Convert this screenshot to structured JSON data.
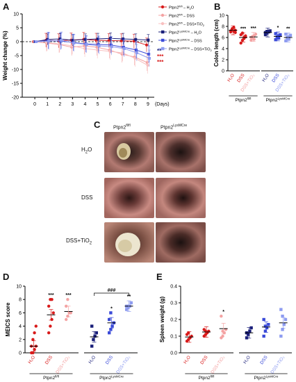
{
  "panels": {
    "a": "A",
    "b": "B",
    "c": "C",
    "d": "D",
    "e": "E"
  },
  "colors": {
    "red": "#d81b1b",
    "salmon": "#f4a3a3",
    "pink": "#f8c0c0",
    "navy": "#1a1f7a",
    "blue": "#3b4bd8",
    "lightblue": "#8e9cf0"
  },
  "panel_c": {
    "col_labels": [
      "Ptpn2",
      "fl/fl",
      "Ptpn2",
      "LysMCre"
    ],
    "row_labels": [
      "H",
      "2",
      "O",
      "DSS",
      "DSS+TiO",
      "2"
    ]
  },
  "chart_data": [
    {
      "type": "line",
      "panel": "A",
      "ylabel": "Weight change (%)",
      "xlabel": "(Days)",
      "x": [
        0,
        1,
        2,
        3,
        4,
        5,
        6,
        7,
        8,
        9
      ],
      "ylim": [
        -20,
        10
      ],
      "yticks": [
        10,
        5,
        0,
        -5,
        -10,
        -15,
        -20
      ],
      "legend": [
        {
          "base": "Ptpn2",
          "sup": "fl/fl",
          "suffix": " – H",
          "sub": "2",
          "tail": "O"
        },
        {
          "base": "Ptpn2",
          "sup": "fl/fl",
          "suffix": " – DSS",
          "sub": "",
          "tail": ""
        },
        {
          "base": "Ptpn2",
          "sup": "fl/fl",
          "suffix": " – DSS+TiO",
          "sub": "2",
          "tail": ""
        },
        {
          "base": "Ptpn2",
          "sup": "LysMCre",
          "suffix": " – H",
          "sub": "2",
          "tail": "O"
        },
        {
          "base": "Ptpn2",
          "sup": "LysMCre",
          "suffix": " – DSS",
          "sub": "",
          "tail": ""
        },
        {
          "base": "Ptpn2",
          "sup": "LysMCre",
          "suffix": " – DSS+TiO",
          "sub": "2",
          "tail": ""
        }
      ],
      "series": [
        {
          "values": [
            0,
            0.5,
            0.3,
            0.6,
            0.8,
            0.5,
            0.4,
            0.3,
            0.2,
            -1.2
          ],
          "err": 2.5
        },
        {
          "values": [
            0,
            -0.5,
            -1.0,
            -2.0,
            -1.5,
            -2.0,
            -3.0,
            -4.5,
            -5.5,
            -7.5
          ],
          "err": 3.0
        },
        {
          "values": [
            0,
            -0.3,
            -0.8,
            -1.5,
            -2.5,
            -3.0,
            -3.5,
            -4.0,
            -6.0,
            -8.5
          ],
          "err": 3.0
        },
        {
          "values": [
            0,
            0.8,
            1.0,
            0.5,
            0.8,
            1.0,
            1.2,
            1.0,
            0.8,
            0.6
          ],
          "err": 2.0
        },
        {
          "values": [
            0,
            0.4,
            0.2,
            -0.3,
            -0.8,
            -1.0,
            -1.2,
            -2.0,
            -3.0,
            -4.5
          ],
          "err": 3.0
        },
        {
          "values": [
            0,
            0.2,
            0.5,
            -0.5,
            -1.0,
            -1.5,
            -1.8,
            -2.5,
            -4.0,
            -6.0
          ],
          "err": 3.0
        }
      ],
      "annotations": [
        "**",
        "***",
        "***"
      ]
    },
    {
      "type": "scatter",
      "panel": "B",
      "ylabel": "Colon length (cm)",
      "ylim": [
        0,
        10
      ],
      "yticks": [
        0,
        2,
        4,
        6,
        8,
        10
      ],
      "categories": [
        "H2O",
        "DSS",
        "DSS+TiO2",
        "H2O",
        "DSS",
        "DSS+TiO2"
      ],
      "groups": [
        {
          "base": "Ptpn2",
          "sup": "fl/fl"
        },
        {
          "base": "Ptpn2",
          "sup": "LysMCre"
        }
      ],
      "means": [
        7.3,
        6.0,
        6.1,
        6.9,
        6.2,
        6.0
      ],
      "points": [
        [
          7.0,
          7.5,
          7.8,
          6.9,
          7.2,
          7.6,
          7.1,
          7.3
        ],
        [
          5.0,
          5.5,
          6.0,
          6.3,
          6.5,
          6.8,
          5.8,
          6.1
        ],
        [
          5.5,
          5.9,
          6.3,
          6.6,
          6.0,
          6.2,
          5.7
        ],
        [
          6.5,
          6.8,
          7.0,
          7.2,
          6.9,
          7.1
        ],
        [
          5.6,
          6.0,
          6.3,
          6.5,
          6.7,
          6.1,
          5.9
        ],
        [
          5.4,
          5.8,
          6.1,
          6.4,
          6.6,
          6.0,
          5.7
        ]
      ],
      "sig": [
        "",
        "***",
        "***",
        "",
        "*",
        "**"
      ]
    },
    {
      "type": "scatter",
      "panel": "D",
      "ylabel": "MEICS score",
      "ylim": [
        0,
        10
      ],
      "yticks": [
        0,
        2,
        4,
        6,
        8,
        10
      ],
      "categories": [
        "H2O",
        "DSS",
        "DSS+TiO2",
        "H2O",
        "DSS",
        "DSS+TiO2"
      ],
      "groups": [
        {
          "base": "Ptpn2",
          "sup": "fl/fl"
        },
        {
          "base": "Ptpn2",
          "sup": "LysMCre"
        }
      ],
      "means": [
        1.0,
        5.7,
        6.2,
        2.4,
        4.5,
        7.0
      ],
      "points": [
        [
          0,
          0,
          0.5,
          1,
          1,
          2,
          3,
          4
        ],
        [
          3,
          4,
          5,
          6,
          7,
          8,
          8
        ],
        [
          5,
          5.5,
          6,
          6,
          7,
          8
        ],
        [
          1,
          2,
          2.5,
          3,
          4
        ],
        [
          3,
          3.5,
          4,
          4.5,
          5,
          6
        ],
        [
          6.5,
          7,
          7,
          7.5,
          7,
          6.8
        ]
      ],
      "sig": [
        "",
        "***",
        "***",
        "",
        "*",
        "**"
      ],
      "bracket_label": "###"
    },
    {
      "type": "scatter",
      "panel": "E",
      "ylabel": "Spleen weight (g)",
      "ylim": [
        0,
        0.4
      ],
      "yticks": [
        0.0,
        0.1,
        0.2,
        0.3,
        0.4
      ],
      "categories": [
        "H2O",
        "DSS",
        "DSS+TiO2",
        "H2O",
        "DSS",
        "DSS+TiO2"
      ],
      "groups": [
        {
          "base": "Ptpn2",
          "sup": "fl/fl"
        },
        {
          "base": "Ptpn2",
          "sup": "LysMCre"
        }
      ],
      "means": [
        0.095,
        0.125,
        0.145,
        0.12,
        0.155,
        0.18
      ],
      "points": [
        [
          0.07,
          0.08,
          0.09,
          0.1,
          0.11,
          0.12,
          0.09
        ],
        [
          0.1,
          0.11,
          0.12,
          0.13,
          0.14,
          0.13,
          0.12
        ],
        [
          0.09,
          0.1,
          0.12,
          0.14,
          0.22,
          0.13
        ],
        [
          0.09,
          0.11,
          0.13,
          0.15,
          0.12
        ],
        [
          0.1,
          0.13,
          0.15,
          0.17,
          0.2,
          0.16
        ],
        [
          0.1,
          0.14,
          0.17,
          0.2,
          0.26,
          0.22
        ]
      ],
      "sig": [
        "",
        "",
        "*",
        "",
        "",
        ""
      ]
    }
  ]
}
